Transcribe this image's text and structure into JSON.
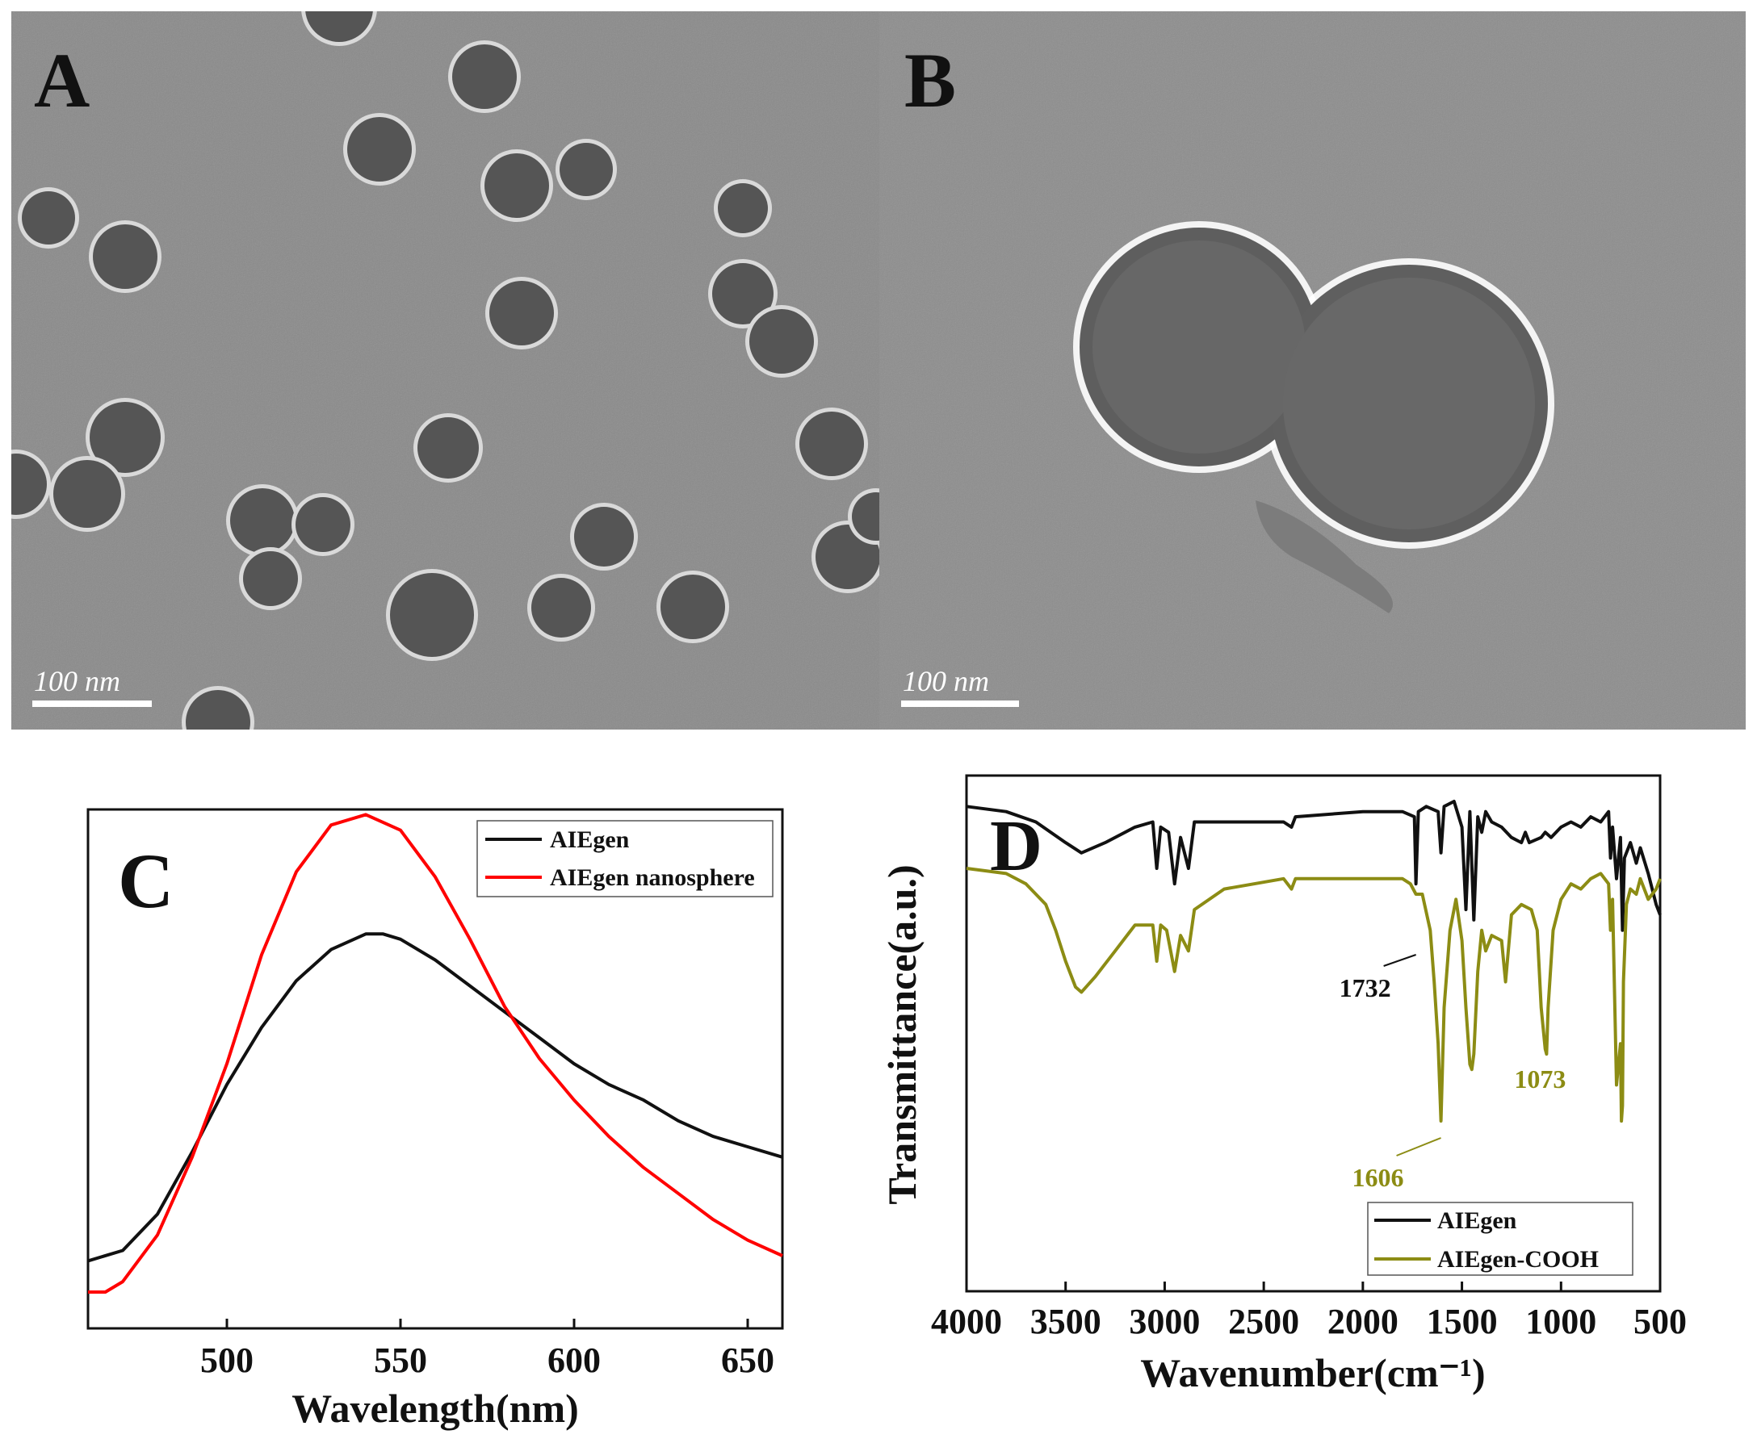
{
  "colors": {
    "black": "#111111",
    "red": "#ff0000",
    "olive": "#8c8c14",
    "tem_bg": "#8a8a8a",
    "particle": "#555555"
  },
  "panels": {
    "A": {
      "letter": "A",
      "scalebar": "100 nm"
    },
    "B": {
      "letter": "B",
      "scalebar": "100 nm"
    },
    "C": {
      "letter": "C"
    },
    "D": {
      "letter": "D"
    }
  },
  "chart_data": [
    {
      "panel": "C",
      "type": "line",
      "xlabel": "Wavelength(nm)",
      "ylabel": "",
      "xlim": [
        460,
        660
      ],
      "ylim": [
        0,
        1
      ],
      "xticks": [
        500,
        550,
        600,
        650
      ],
      "legend_position": "top-right",
      "series": [
        {
          "name": "AIEgen",
          "color": "#111111",
          "x": [
            460,
            470,
            480,
            490,
            500,
            510,
            520,
            530,
            540,
            545,
            550,
            560,
            570,
            580,
            590,
            600,
            610,
            620,
            630,
            640,
            650,
            660
          ],
          "y": [
            0.13,
            0.15,
            0.22,
            0.34,
            0.47,
            0.58,
            0.67,
            0.73,
            0.76,
            0.76,
            0.75,
            0.71,
            0.66,
            0.61,
            0.56,
            0.51,
            0.47,
            0.44,
            0.4,
            0.37,
            0.35,
            0.33
          ]
        },
        {
          "name": "AIEgen nanosphere",
          "color": "#ff0000",
          "x": [
            460,
            465,
            470,
            480,
            490,
            500,
            510,
            520,
            530,
            540,
            550,
            560,
            570,
            580,
            590,
            600,
            610,
            620,
            630,
            640,
            650,
            660
          ],
          "y": [
            0.07,
            0.07,
            0.09,
            0.18,
            0.33,
            0.51,
            0.72,
            0.88,
            0.97,
            0.99,
            0.96,
            0.87,
            0.75,
            0.62,
            0.52,
            0.44,
            0.37,
            0.31,
            0.26,
            0.21,
            0.17,
            0.14
          ]
        }
      ]
    },
    {
      "panel": "D",
      "type": "line",
      "xlabel": "Wavenumber(cm⁻¹)",
      "ylabel": "Transmittance(a.u.)",
      "xlim": [
        4000,
        500
      ],
      "ylim": [
        0,
        1
      ],
      "xticks": [
        4000,
        3500,
        3000,
        2500,
        2000,
        1500,
        1000,
        500
      ],
      "legend_position": "bottom-right",
      "annotations": [
        {
          "text": "1732",
          "x": 1732,
          "color": "#111111"
        },
        {
          "text": "1606",
          "x": 1606,
          "color": "#8c8c14"
        },
        {
          "text": "1073",
          "x": 1073,
          "color": "#8c8c14"
        }
      ],
      "series": [
        {
          "name": "AIEgen",
          "color": "#111111",
          "x": [
            4000,
            3800,
            3650,
            3500,
            3420,
            3300,
            3150,
            3060,
            3040,
            3020,
            2980,
            2950,
            2920,
            2880,
            2850,
            2700,
            2400,
            2360,
            2340,
            2000,
            1800,
            1740,
            1732,
            1720,
            1680,
            1620,
            1606,
            1590,
            1540,
            1500,
            1480,
            1460,
            1440,
            1420,
            1400,
            1380,
            1350,
            1300,
            1250,
            1200,
            1180,
            1160,
            1100,
            1080,
            1050,
            1000,
            950,
            900,
            850,
            800,
            760,
            750,
            740,
            720,
            700,
            690,
            680,
            650,
            620,
            600,
            560,
            520,
            500
          ],
          "y": [
            0.94,
            0.93,
            0.91,
            0.87,
            0.85,
            0.87,
            0.9,
            0.91,
            0.82,
            0.9,
            0.89,
            0.79,
            0.88,
            0.82,
            0.91,
            0.91,
            0.91,
            0.9,
            0.92,
            0.93,
            0.93,
            0.92,
            0.79,
            0.93,
            0.94,
            0.93,
            0.85,
            0.94,
            0.95,
            0.9,
            0.74,
            0.93,
            0.72,
            0.92,
            0.89,
            0.93,
            0.91,
            0.9,
            0.88,
            0.87,
            0.89,
            0.87,
            0.88,
            0.89,
            0.88,
            0.9,
            0.91,
            0.9,
            0.92,
            0.91,
            0.93,
            0.84,
            0.9,
            0.8,
            0.88,
            0.7,
            0.84,
            0.87,
            0.83,
            0.86,
            0.81,
            0.75,
            0.73
          ]
        },
        {
          "name": "AIEgen-COOH",
          "color": "#8c8c14",
          "x": [
            4000,
            3800,
            3700,
            3600,
            3550,
            3500,
            3450,
            3420,
            3350,
            3250,
            3150,
            3060,
            3040,
            3020,
            2990,
            2950,
            2920,
            2880,
            2850,
            2700,
            2400,
            2360,
            2340,
            2000,
            1800,
            1760,
            1732,
            1700,
            1660,
            1640,
            1620,
            1606,
            1590,
            1560,
            1530,
            1500,
            1480,
            1460,
            1450,
            1440,
            1420,
            1400,
            1380,
            1350,
            1300,
            1280,
            1250,
            1200,
            1150,
            1120,
            1100,
            1080,
            1073,
            1065,
            1040,
            1000,
            950,
            900,
            850,
            800,
            760,
            750,
            740,
            720,
            700,
            695,
            690,
            685,
            670,
            650,
            620,
            600,
            560,
            520,
            500
          ],
          "y": [
            0.82,
            0.81,
            0.79,
            0.75,
            0.7,
            0.64,
            0.59,
            0.58,
            0.61,
            0.66,
            0.71,
            0.71,
            0.64,
            0.71,
            0.7,
            0.62,
            0.69,
            0.66,
            0.74,
            0.78,
            0.8,
            0.78,
            0.8,
            0.8,
            0.8,
            0.79,
            0.77,
            0.77,
            0.7,
            0.6,
            0.48,
            0.33,
            0.55,
            0.7,
            0.76,
            0.68,
            0.55,
            0.44,
            0.43,
            0.46,
            0.62,
            0.7,
            0.66,
            0.69,
            0.68,
            0.6,
            0.73,
            0.75,
            0.74,
            0.7,
            0.55,
            0.47,
            0.46,
            0.55,
            0.7,
            0.76,
            0.79,
            0.78,
            0.8,
            0.81,
            0.79,
            0.7,
            0.76,
            0.4,
            0.48,
            0.33,
            0.36,
            0.6,
            0.75,
            0.78,
            0.77,
            0.8,
            0.76,
            0.78,
            0.8
          ]
        }
      ]
    }
  ]
}
